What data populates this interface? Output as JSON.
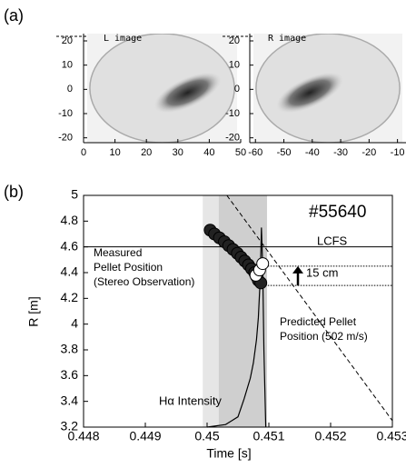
{
  "panel_labels": [
    "(a)",
    "(b)"
  ],
  "chart_data": [
    {
      "type": "image",
      "label": "L image",
      "xlim": [
        0,
        50
      ],
      "xticks": [
        0,
        10,
        20,
        30,
        40,
        50
      ],
      "ylim": [
        -22,
        23
      ],
      "yticks": [
        -20,
        -10,
        0,
        10,
        20
      ],
      "tilt": -25
    },
    {
      "type": "image",
      "label": "R image",
      "xlim": [
        -62,
        -7
      ],
      "xticks": [
        -60,
        -50,
        -40,
        -30,
        -20,
        -10
      ],
      "ylim": [
        -22,
        23
      ],
      "yticks": [
        -20,
        -10,
        0,
        10,
        20
      ],
      "tilt": -25
    },
    {
      "type": "scatter",
      "xlabel": "Time  [s]",
      "ylabel": "R  [m]",
      "xlim": [
        0.448,
        0.453
      ],
      "xticks": [
        0.448,
        0.449,
        0.45,
        0.451,
        0.452,
        0.453
      ],
      "ylim": [
        3.2,
        5.0
      ],
      "yticks": [
        3.2,
        3.4,
        3.6,
        3.8,
        4.0,
        4.2,
        4.4,
        4.6,
        4.8,
        5.0
      ],
      "bands": [
        [
          0.44993,
          0.45097
        ],
        [
          0.45019,
          0.45097
        ]
      ],
      "band_colors": [
        "#e6e6e6",
        "#cfcfcf"
      ],
      "lcfs": 4.6,
      "reference_lines": [
        4.45,
        4.3
      ],
      "measured": {
        "x": [
          0.45005,
          0.45012,
          0.4502,
          0.45028,
          0.45035,
          0.45042,
          0.45049,
          0.45055,
          0.45061,
          0.45067,
          0.45072,
          0.45077,
          0.4508,
          0.45083,
          0.45087
        ],
        "y": [
          4.73,
          4.7,
          4.67,
          4.64,
          4.61,
          4.58,
          4.55,
          4.52,
          4.49,
          4.46,
          4.43,
          4.4,
          4.37,
          4.34,
          4.32
        ]
      },
      "measured_open": {
        "x": [
          0.45079,
          0.45085,
          0.4509
        ],
        "y": [
          4.38,
          4.42,
          4.47
        ]
      },
      "predicted": {
        "x": [
          0.45032,
          0.453
        ],
        "y": [
          5.0,
          3.25
        ]
      },
      "halpha": {
        "x": [
          0.45,
          0.4503,
          0.4505,
          0.4506,
          0.4507,
          0.45075,
          0.4508,
          0.45083,
          0.45086,
          0.45088,
          0.4509,
          0.45092,
          0.45095
        ],
        "y": [
          3.2,
          3.22,
          3.28,
          3.42,
          3.58,
          3.7,
          3.88,
          4.05,
          4.35,
          4.75,
          4.45,
          3.8,
          3.2
        ]
      },
      "annotations": [
        "#55640",
        "LCFS",
        "Measured",
        "Pellet Position",
        "(Stereo Observation)",
        "15 cm",
        "Predicted Pellet",
        "Position (502 m/s)",
        "Hα Intensity"
      ]
    }
  ]
}
